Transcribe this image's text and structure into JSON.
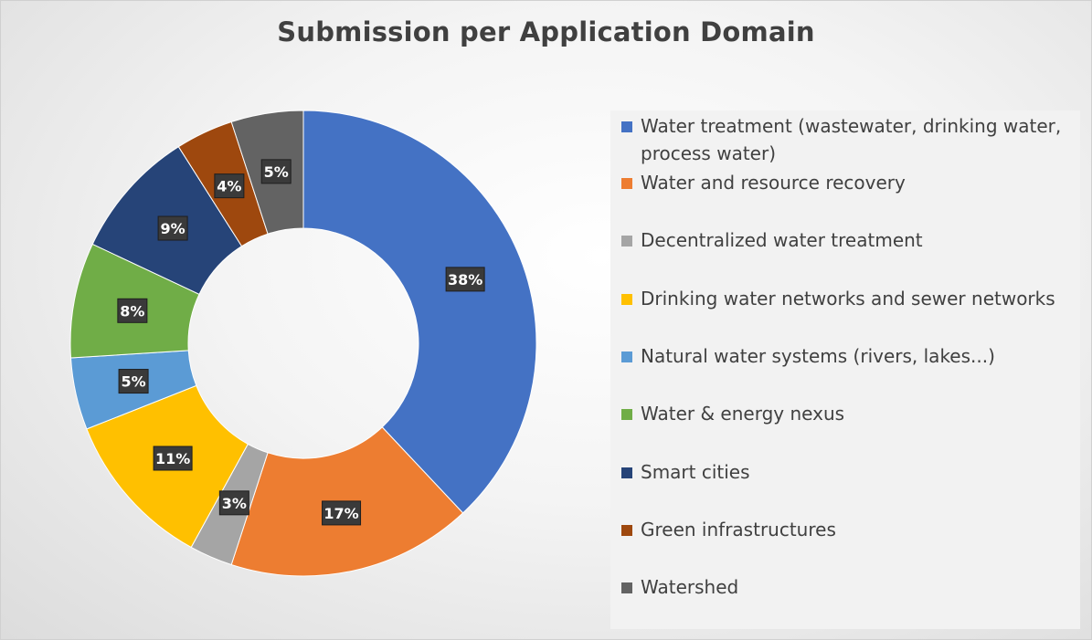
{
  "chart_data": {
    "type": "pie",
    "variant": "donut",
    "title": "Submission per Application Domain",
    "legend_position": "right",
    "slices": [
      {
        "label": "Water treatment (wastewater, drinking water, process water)",
        "value": 38,
        "display": "38%",
        "color": "#4472C4"
      },
      {
        "label": "Water and resource recovery",
        "value": 17,
        "display": "17%",
        "color": "#ED7D31"
      },
      {
        "label": "Decentralized water treatment",
        "value": 3,
        "display": "3%",
        "color": "#A5A5A5"
      },
      {
        "label": "Drinking water networks and sewer networks",
        "value": 11,
        "display": "11%",
        "color": "#FFC000"
      },
      {
        "label": "Natural water systems (rivers, lakes...)",
        "value": 5,
        "display": "5%",
        "color": "#5B9BD5"
      },
      {
        "label": "Water & energy nexus",
        "value": 8,
        "display": "8%",
        "color": "#70AD47"
      },
      {
        "label": "Smart cities",
        "value": 9,
        "display": "9%",
        "color": "#264478"
      },
      {
        "label": "Green infrastructures",
        "value": 4,
        "display": "4%",
        "color": "#9E480E"
      },
      {
        "label": "Watershed",
        "value": 5,
        "display": "5%",
        "color": "#636363"
      }
    ]
  }
}
